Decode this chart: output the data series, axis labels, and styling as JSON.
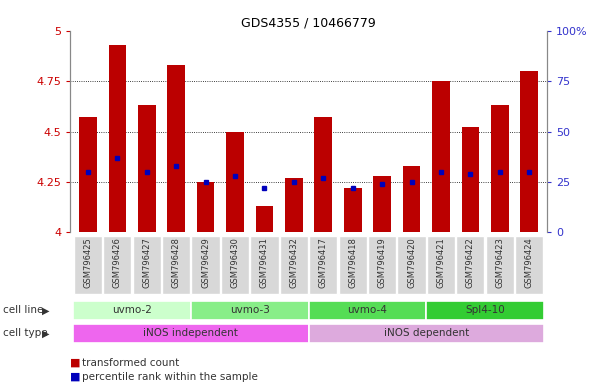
{
  "title": "GDS4355 / 10466779",
  "samples": [
    "GSM796425",
    "GSM796426",
    "GSM796427",
    "GSM796428",
    "GSM796429",
    "GSM796430",
    "GSM796431",
    "GSM796432",
    "GSM796417",
    "GSM796418",
    "GSM796419",
    "GSM796420",
    "GSM796421",
    "GSM796422",
    "GSM796423",
    "GSM796424"
  ],
  "bar_values": [
    4.57,
    4.93,
    4.63,
    4.83,
    4.25,
    4.5,
    4.13,
    4.27,
    4.57,
    4.22,
    4.28,
    4.33,
    4.75,
    4.52,
    4.63,
    4.8
  ],
  "percentile_values": [
    4.3,
    4.37,
    4.3,
    4.33,
    4.25,
    4.28,
    4.22,
    4.25,
    4.27,
    4.22,
    4.24,
    4.25,
    4.3,
    4.29,
    4.3,
    4.3
  ],
  "ylim": [
    4.0,
    5.0
  ],
  "yticks": [
    4.0,
    4.25,
    4.5,
    4.75,
    5.0
  ],
  "ytick_labels": [
    "4",
    "4.25",
    "4.5",
    "4.75",
    "5"
  ],
  "right_ytick_labels": [
    "0",
    "25",
    "50",
    "75",
    "100%"
  ],
  "bar_color": "#bb0000",
  "percentile_color": "#0000bb",
  "cell_line_groups": [
    {
      "label": "uvmo-2",
      "start": 0,
      "end": 3,
      "color": "#ccffcc"
    },
    {
      "label": "uvmo-3",
      "start": 4,
      "end": 7,
      "color": "#88ee88"
    },
    {
      "label": "uvmo-4",
      "start": 8,
      "end": 11,
      "color": "#55dd55"
    },
    {
      "label": "Spl4-10",
      "start": 12,
      "end": 15,
      "color": "#33cc33"
    }
  ],
  "cell_type_groups": [
    {
      "label": "iNOS independent",
      "start": 0,
      "end": 7,
      "color": "#ee66ee"
    },
    {
      "label": "iNOS dependent",
      "start": 8,
      "end": 15,
      "color": "#ddaadd"
    }
  ],
  "left_axis_color": "#cc0000",
  "right_axis_color": "#3333cc",
  "tick_label_color": "#333333",
  "grid_color": "#000000",
  "cell_line_label": "cell line",
  "cell_type_label": "cell type",
  "legend_red_label": "transformed count",
  "legend_blue_label": "percentile rank within the sample"
}
